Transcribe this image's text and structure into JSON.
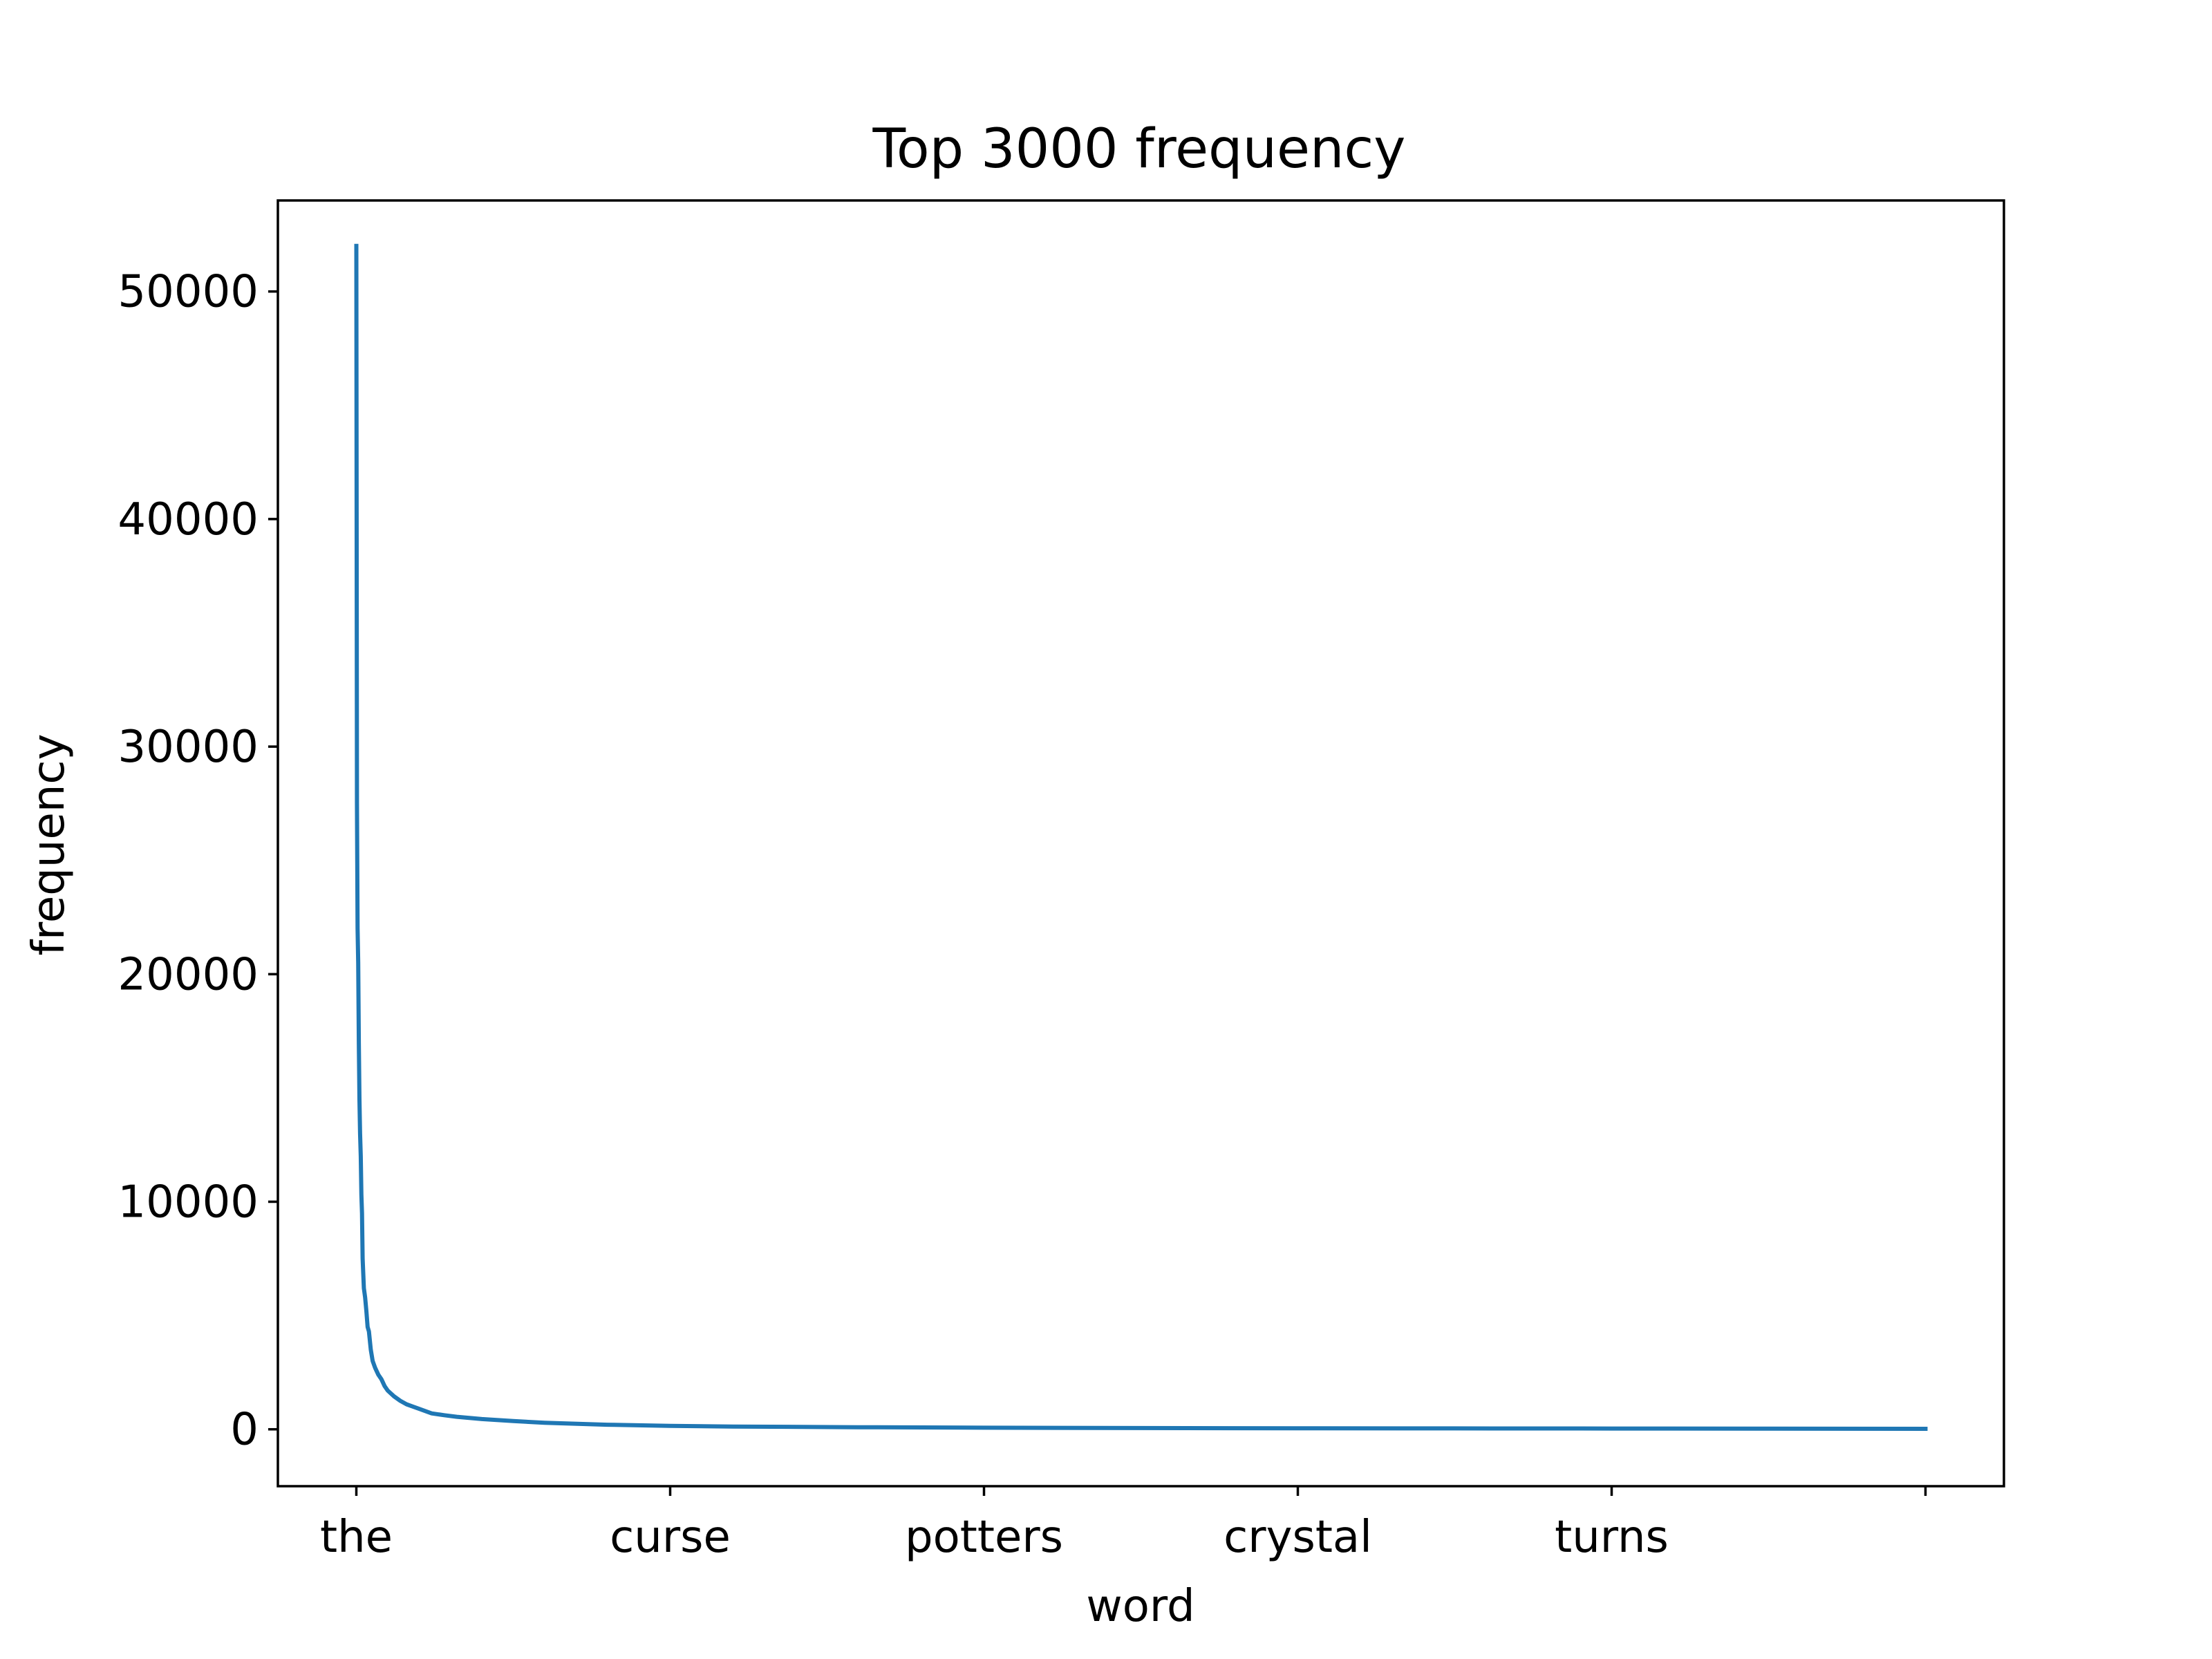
{
  "chart_data": {
    "type": "line",
    "title": "Top 3000 frequency",
    "xlabel": "word",
    "ylabel": "frequency",
    "grid": false,
    "xlim": [
      -125,
      2625
    ],
    "ylim": [
      -2500,
      54000
    ],
    "x_ticks": [
      {
        "pos": 0,
        "label": "the"
      },
      {
        "pos": 500,
        "label": "curse"
      },
      {
        "pos": 1000,
        "label": "potters"
      },
      {
        "pos": 1500,
        "label": "crystal"
      },
      {
        "pos": 2000,
        "label": "turns"
      },
      {
        "pos": 2500,
        "label": ""
      }
    ],
    "y_ticks": [
      {
        "value": 0,
        "label": "0"
      },
      {
        "value": 10000,
        "label": "10000"
      },
      {
        "value": 20000,
        "label": "20000"
      },
      {
        "value": 30000,
        "label": "30000"
      },
      {
        "value": 40000,
        "label": "40000"
      },
      {
        "value": 50000,
        "label": "50000"
      }
    ],
    "series": [
      {
        "color": "#1f77b4",
        "x": [
          0,
          1,
          2,
          3,
          4,
          5,
          6,
          7,
          8,
          9,
          10,
          12,
          14,
          16,
          18,
          20,
          23,
          26,
          30,
          35,
          40,
          45,
          50,
          60,
          70,
          80,
          90,
          100,
          120,
          140,
          160,
          200,
          250,
          300,
          400,
          500,
          600,
          800,
          1000,
          1250,
          1500,
          1750,
          2000,
          2250,
          2500
        ],
        "values": [
          52000,
          27500,
          22000,
          20500,
          17000,
          14500,
          13000,
          12000,
          10300,
          9500,
          7500,
          6200,
          5800,
          5200,
          4500,
          4300,
          3500,
          3000,
          2700,
          2400,
          2200,
          1900,
          1700,
          1450,
          1250,
          1100,
          1000,
          900,
          700,
          620,
          550,
          450,
          360,
          290,
          200,
          150,
          120,
          90,
          70,
          55,
          45,
          38,
          32,
          26,
          22
        ]
      }
    ]
  }
}
